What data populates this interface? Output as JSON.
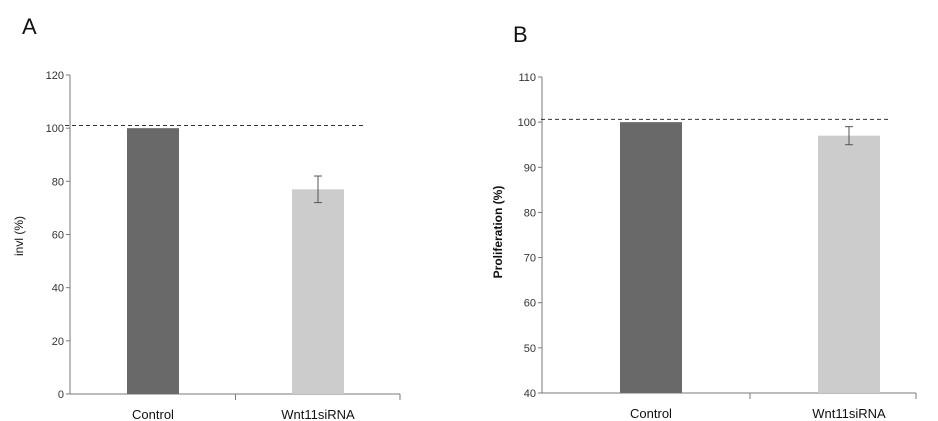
{
  "chart_data": [
    {
      "panel": "A",
      "type": "bar",
      "title": "",
      "xlabel": "",
      "ylabel": "invl (%)",
      "ylim": [
        0,
        120
      ],
      "yticks": [
        0,
        20,
        40,
        60,
        80,
        100,
        120
      ],
      "categories": [
        "Control",
        "Wnt11siRNA"
      ],
      "values": [
        100,
        77
      ],
      "errors": [
        0,
        5
      ],
      "bar_colors": [
        "#696969",
        "#cccccc"
      ],
      "reference_line": 101,
      "grid": false,
      "legend": "none"
    },
    {
      "panel": "B",
      "type": "bar",
      "title": "",
      "xlabel": "",
      "ylabel": "Proliferation (%)",
      "ylim": [
        40,
        110
      ],
      "yticks": [
        40,
        50,
        60,
        70,
        80,
        90,
        100,
        110
      ],
      "categories": [
        "Control",
        "Wnt11siRNA"
      ],
      "values": [
        100,
        97
      ],
      "errors": [
        0,
        2
      ],
      "bar_colors": [
        "#696969",
        "#cccccc"
      ],
      "reference_line": 100.6,
      "grid": false,
      "legend": "none"
    }
  ]
}
